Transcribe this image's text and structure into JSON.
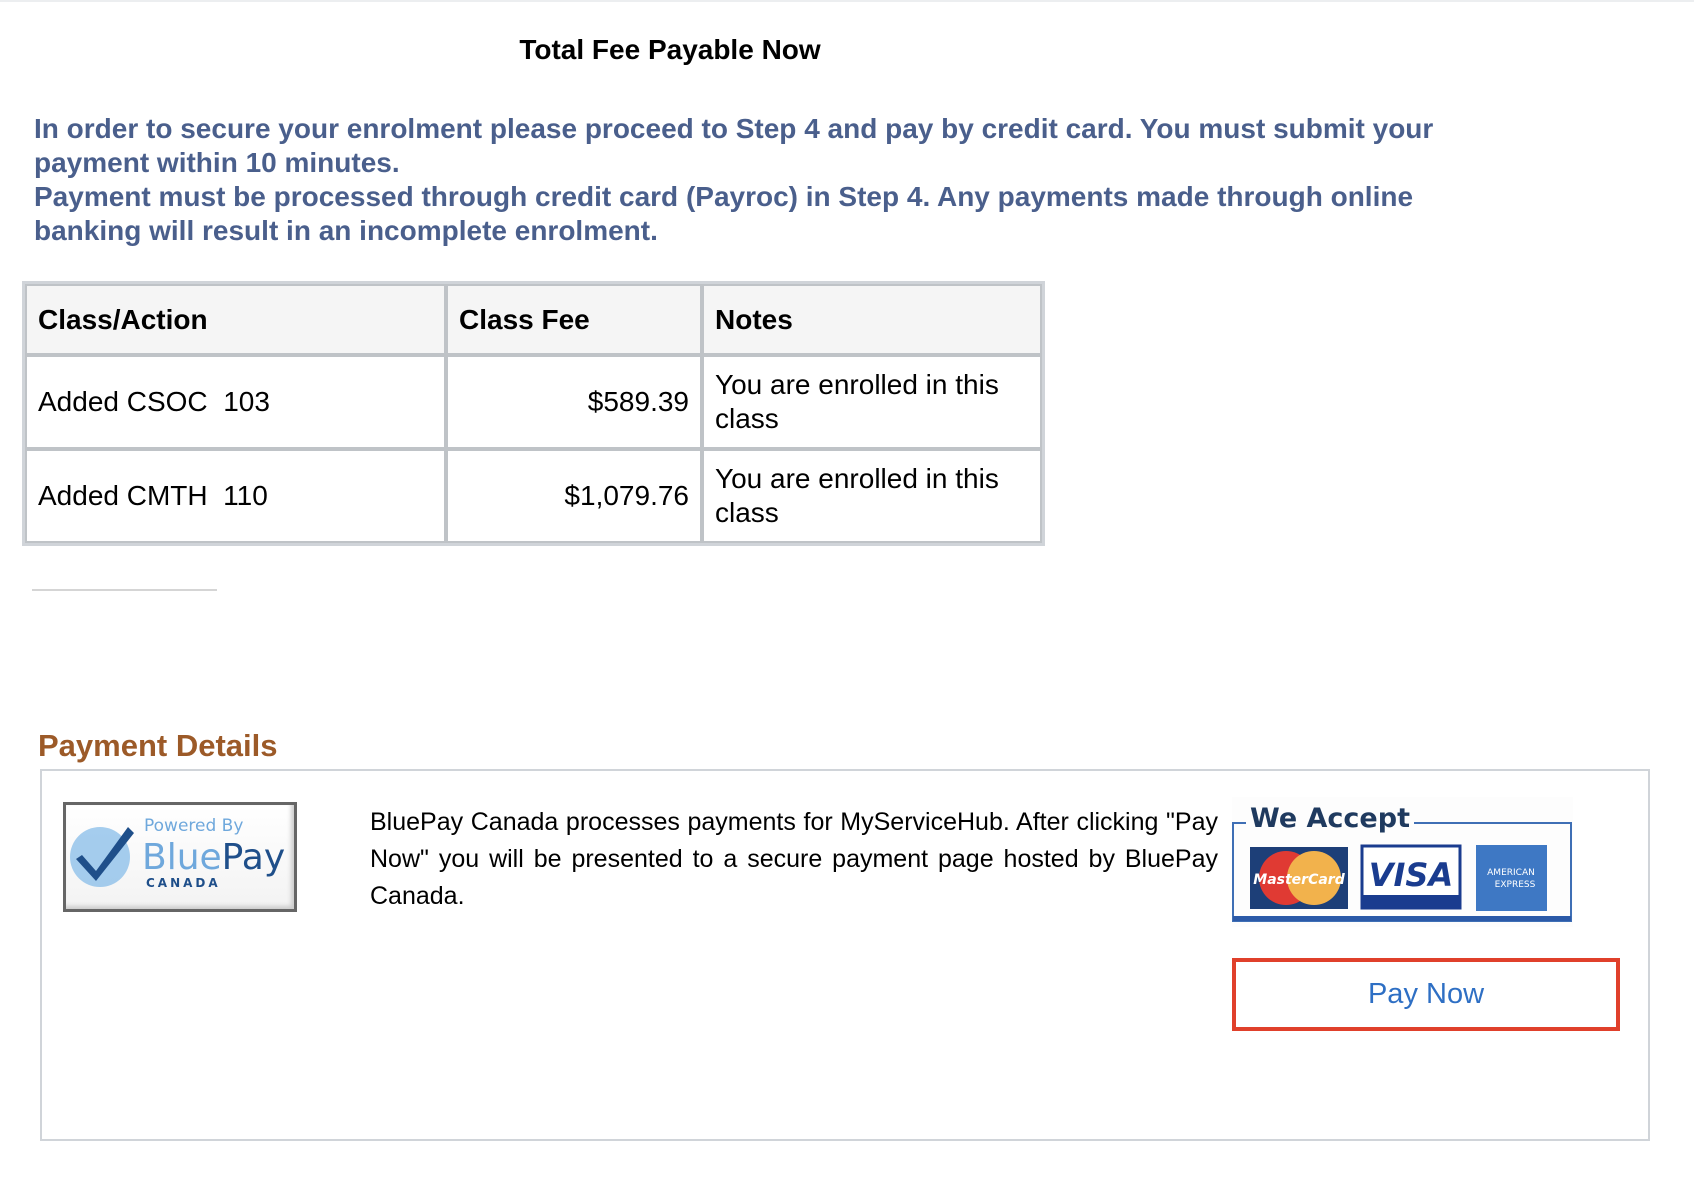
{
  "title": "Total Fee Payable Now",
  "notice": {
    "line1": "In order to secure your enrolment please proceed to Step 4 and pay by credit card. You must submit your payment within 10 minutes.",
    "line2": "Payment must be processed through credit card (Payroc) in Step 4. Any payments made through online banking will result in an incomplete enrolment.",
    "color": "#4a5f8c"
  },
  "table": {
    "headers": [
      "Class/Action",
      "Class Fee",
      "Notes"
    ],
    "rows": [
      {
        "action": "Added CSOC  103",
        "fee": "$589.39",
        "notes": "You are enrolled in this class"
      },
      {
        "action": "Added CMTH  110",
        "fee": "$1,079.76",
        "notes": "You are enrolled in this class"
      }
    ]
  },
  "payment": {
    "title": "Payment Details",
    "logo": {
      "powered": "Powered By",
      "brand_a": "Blue",
      "brand_b": "Pay",
      "country": "CANADA"
    },
    "description": "BluePay Canada processes payments for MyServiceHub. After clicking \"Pay Now\" you will be presented to a secure payment page hosted by BluePay Canada.",
    "accept": {
      "label": "We Accept",
      "cards": [
        "MasterCard",
        "VISA",
        "AMERICAN EXPRESS"
      ]
    },
    "pay_button": "Pay Now",
    "accent": "#e0402b"
  }
}
